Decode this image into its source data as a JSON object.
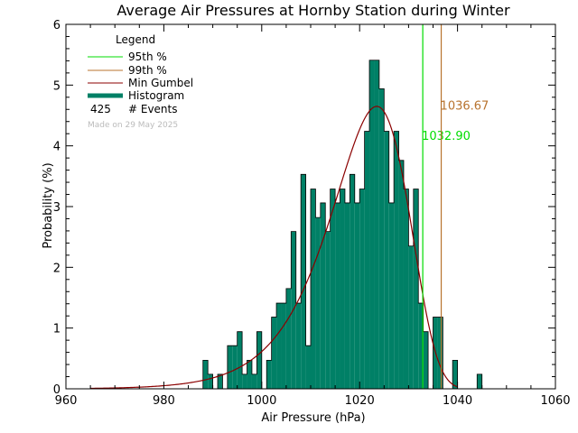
{
  "chart_data": {
    "type": "bar",
    "title": "Average Air Pressures at Hornby Station during Winter",
    "xlabel": "Air Pressure (hPa)",
    "ylabel": "Probability (%)",
    "xlim": [
      960,
      1060
    ],
    "ylim": [
      0,
      6
    ],
    "x_ticks": [
      "960",
      "980",
      "1000",
      "1020",
      "1040",
      "1060"
    ],
    "y_ticks": [
      "0",
      "1",
      "2",
      "3",
      "4",
      "5",
      "6"
    ],
    "bin_width": 1,
    "histogram": {
      "name": "Histogram",
      "color": "#008066",
      "bins": [
        [
          988,
          0.47
        ],
        [
          989,
          0.24
        ],
        [
          990,
          0.0
        ],
        [
          991,
          0.24
        ],
        [
          992,
          0.0
        ],
        [
          993,
          0.71
        ],
        [
          994,
          0.71
        ],
        [
          995,
          0.94
        ],
        [
          996,
          0.24
        ],
        [
          997,
          0.47
        ],
        [
          998,
          0.24
        ],
        [
          999,
          0.94
        ],
        [
          1000,
          0.0
        ],
        [
          1001,
          0.47
        ],
        [
          1002,
          1.18
        ],
        [
          1003,
          1.41
        ],
        [
          1004,
          1.41
        ],
        [
          1005,
          1.65
        ],
        [
          1006,
          2.59
        ],
        [
          1007,
          1.41
        ],
        [
          1008,
          3.53
        ],
        [
          1009,
          0.71
        ],
        [
          1010,
          3.29
        ],
        [
          1011,
          2.82
        ],
        [
          1012,
          3.06
        ],
        [
          1013,
          2.59
        ],
        [
          1014,
          3.29
        ],
        [
          1015,
          3.06
        ],
        [
          1016,
          3.29
        ],
        [
          1017,
          3.06
        ],
        [
          1018,
          3.53
        ],
        [
          1019,
          3.06
        ],
        [
          1020,
          3.29
        ],
        [
          1021,
          4.24
        ],
        [
          1022,
          5.41
        ],
        [
          1023,
          5.41
        ],
        [
          1024,
          4.94
        ],
        [
          1025,
          4.24
        ],
        [
          1026,
          3.06
        ],
        [
          1027,
          4.24
        ],
        [
          1028,
          3.76
        ],
        [
          1029,
          3.29
        ],
        [
          1030,
          2.35
        ],
        [
          1031,
          3.29
        ],
        [
          1032,
          1.41
        ],
        [
          1033,
          0.94
        ],
        [
          1034,
          0.0
        ],
        [
          1035,
          1.18
        ],
        [
          1036,
          1.18
        ],
        [
          1037,
          0.0
        ],
        [
          1038,
          0.0
        ],
        [
          1039,
          0.47
        ],
        [
          1040,
          0.0
        ],
        [
          1041,
          0.0
        ],
        [
          1042,
          0.0
        ],
        [
          1043,
          0.0
        ],
        [
          1044,
          0.24
        ]
      ]
    },
    "gumbel": {
      "name": "Min Gumbel",
      "color": "#8b0000",
      "mu": 1023.5,
      "beta": 7.9,
      "x_range": [
        965,
        1040
      ]
    },
    "thresholds": [
      {
        "name": "95th %",
        "value": 1032.9,
        "label": "1032.90",
        "color": "#00dd00",
        "label_y": 4.1
      },
      {
        "name": "99th %",
        "value": 1036.67,
        "label": "1036.67",
        "color": "#b8732e",
        "label_y": 4.6
      }
    ],
    "legend": {
      "title": "Legend",
      "events_count": "425",
      "events_label": "# Events",
      "made_on": "Made on 29 May 2025",
      "placement": "top-left"
    }
  }
}
